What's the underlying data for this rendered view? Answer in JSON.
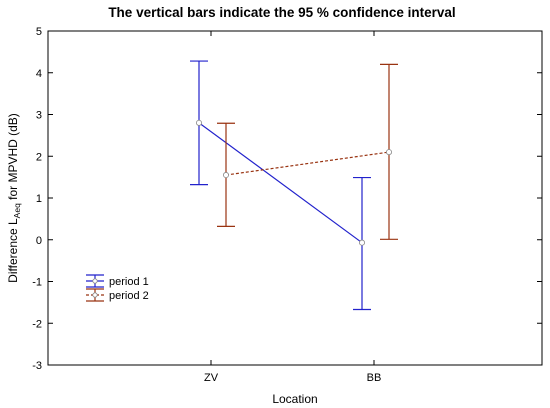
{
  "chart_data": {
    "type": "line",
    "title": "The vertical bars indicate the 95 % confidence interval",
    "xlabel": "Location",
    "ylabel_main": "Difference L",
    "ylabel_sub": "Aeq",
    "ylabel_rest": " for MPVHD (dB)",
    "categories": [
      "ZV",
      "BB"
    ],
    "ylim": [
      -3,
      5
    ],
    "yticks": [
      -3,
      -2,
      -1,
      0,
      1,
      2,
      3,
      4,
      5
    ],
    "grid": false,
    "legend_position": "lower-left",
    "series": [
      {
        "name": "period 1",
        "color": "#2222cc",
        "line_style": "solid",
        "values": [
          2.8,
          -0.07
        ],
        "ci_low": [
          1.32,
          -1.67
        ],
        "ci_high": [
          4.28,
          1.49
        ]
      },
      {
        "name": "period 2",
        "color": "#993311",
        "line_style": "dashed",
        "values": [
          1.55,
          2.1
        ],
        "ci_low": [
          0.32,
          0.01
        ],
        "ci_high": [
          2.79,
          4.2
        ]
      }
    ]
  }
}
